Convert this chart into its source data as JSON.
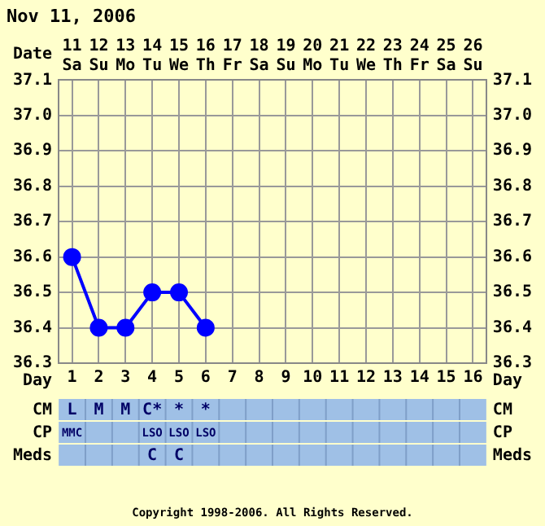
{
  "chart_data": {
    "type": "line",
    "title": "Nov 11, 2006",
    "subtitle": "Copyright 1998-2006. All Rights Reserved.",
    "xlabel": "Day",
    "x2label": "Date",
    "x": [
      1,
      2,
      3,
      4,
      5,
      6
    ],
    "series": [
      {
        "color": "#0000ff",
        "values": [
          36.6,
          36.4,
          36.4,
          36.5,
          36.5,
          36.4
        ]
      }
    ],
    "xlim": [
      0.5,
      16.5
    ],
    "xticks": [
      1,
      2,
      3,
      4,
      5,
      6,
      7,
      8,
      9,
      10,
      11,
      12,
      13,
      14,
      15,
      16
    ],
    "x2lim": [
      "--11-10T12:00",
      "--11-26T12:00"
    ],
    "x2ticks": [
      {
        "value": "--11-11",
        "label": "11 Sa"
      },
      {
        "value": "--11-12",
        "label": "12 Su"
      },
      {
        "value": "--11-13",
        "label": "13 Mo"
      },
      {
        "value": "--11-14",
        "label": "14 Tu"
      },
      {
        "value": "--11-15",
        "label": "15 We"
      },
      {
        "value": "--11-16",
        "label": "16 Th"
      },
      {
        "value": "--11-17",
        "label": "17 Fr"
      },
      {
        "value": "--11-18",
        "label": "18 Sa"
      },
      {
        "value": "--11-19",
        "label": "19 Su"
      },
      {
        "value": "--11-20",
        "label": "20 Mo"
      },
      {
        "value": "--11-21",
        "label": "21 Tu"
      },
      {
        "value": "--11-22",
        "label": "22 We"
      },
      {
        "value": "--11-23",
        "label": "23 Th"
      },
      {
        "value": "--11-24",
        "label": "24 Fr"
      },
      {
        "value": "--11-25",
        "label": "25 Sa"
      },
      {
        "value": "--11-26",
        "label": "26 Su"
      }
    ],
    "ylim": [
      36.3,
      37.1
    ],
    "yticks": [
      36.3,
      36.4,
      36.5,
      36.6,
      36.7,
      36.8,
      36.9,
      {
        "value": 37,
        "label": "37.0"
      },
      37.1
    ],
    "y2lim": [
      36.3,
      37.1
    ],
    "y2ticks": [
      36.3,
      36.4,
      36.5,
      36.6,
      36.7,
      36.8,
      36.9,
      {
        "value": 37,
        "label": "37.0"
      },
      37.1
    ],
    "annotations": [
      "CM",
      "CP",
      "Meds",
      "L M M C* * *",
      "MMC   LSO LSO LSO",
      "   C C",
      "CM",
      "CP",
      "Meds"
    ],
    "grid": true,
    "marker": "circle",
    "line_style": "solid",
    "legend": false
  }
}
